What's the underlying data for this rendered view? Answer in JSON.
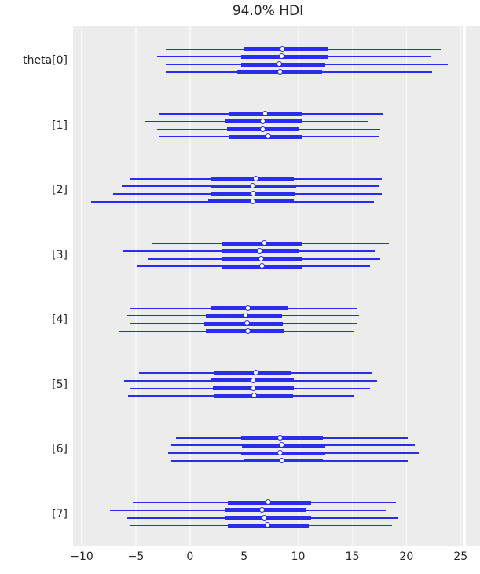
{
  "title": {
    "text": "94.0% HDI"
  },
  "colors": {
    "line": "#2a2eec",
    "plot_bg": "#ececec",
    "grid": "#f7f7f7",
    "text": "#262626",
    "figure_bg": "#ffffff"
  },
  "chart_data": {
    "type": "forest",
    "title": "94.0% HDI",
    "xlabel": "",
    "ylabel": "",
    "grid": "vertical-white-on-gray",
    "legend": "none",
    "xlim": [
      -10.8,
      25.2
    ],
    "x_ticks": [
      {
        "v": -10,
        "label": "−10"
      },
      {
        "v": -5,
        "label": "−5"
      },
      {
        "v": 0,
        "label": "0"
      },
      {
        "v": 5,
        "label": "5"
      },
      {
        "v": 10,
        "label": "10"
      },
      {
        "v": 15,
        "label": "15"
      },
      {
        "v": 20,
        "label": "20"
      },
      {
        "v": 25,
        "label": "25"
      }
    ],
    "interval_note": "thin line = 94% HDI, thick line = interquartile range, circle = median; 4 chains per parameter",
    "series": [
      {
        "name": "theta[0]",
        "chains": [
          {
            "hdi_94": [
              -2.2,
              23.2
            ],
            "quartile": [
              5.0,
              12.7
            ],
            "median": 8.6
          },
          {
            "hdi_94": [
              -3.0,
              22.2
            ],
            "quartile": [
              4.7,
              12.8
            ],
            "median": 8.5
          },
          {
            "hdi_94": [
              -2.2,
              23.8
            ],
            "quartile": [
              4.7,
              12.5
            ],
            "median": 8.3
          },
          {
            "hdi_94": [
              -2.2,
              22.4
            ],
            "quartile": [
              4.4,
              12.2
            ],
            "median": 8.4
          }
        ]
      },
      {
        "name": "[1]",
        "chains": [
          {
            "hdi_94": [
              -2.8,
              17.9
            ],
            "quartile": [
              3.6,
              10.4
            ],
            "median": 7.0
          },
          {
            "hdi_94": [
              -4.2,
              16.5
            ],
            "quartile": [
              3.3,
              10.4
            ],
            "median": 6.8
          },
          {
            "hdi_94": [
              -3.0,
              17.6
            ],
            "quartile": [
              3.4,
              10.0
            ],
            "median": 6.8
          },
          {
            "hdi_94": [
              -2.8,
              17.5
            ],
            "quartile": [
              3.6,
              10.4
            ],
            "median": 7.3
          }
        ]
      },
      {
        "name": "[2]",
        "chains": [
          {
            "hdi_94": [
              -5.6,
              17.7
            ],
            "quartile": [
              2.0,
              9.6
            ],
            "median": 6.1
          },
          {
            "hdi_94": [
              -6.3,
              17.5
            ],
            "quartile": [
              1.9,
              9.8
            ],
            "median": 5.8
          },
          {
            "hdi_94": [
              -7.1,
              17.7
            ],
            "quartile": [
              1.9,
              9.7
            ],
            "median": 5.9
          },
          {
            "hdi_94": [
              -9.1,
              17.0
            ],
            "quartile": [
              1.7,
              9.6
            ],
            "median": 5.8
          }
        ]
      },
      {
        "name": "[3]",
        "chains": [
          {
            "hdi_94": [
              -3.5,
              18.4
            ],
            "quartile": [
              3.0,
              10.4
            ],
            "median": 6.9
          },
          {
            "hdi_94": [
              -6.2,
              17.1
            ],
            "quartile": [
              3.0,
              10.0
            ],
            "median": 6.5
          },
          {
            "hdi_94": [
              -3.8,
              17.6
            ],
            "quartile": [
              3.0,
              10.3
            ],
            "median": 6.6
          },
          {
            "hdi_94": [
              -4.9,
              16.6
            ],
            "quartile": [
              3.0,
              10.3
            ],
            "median": 6.7
          }
        ]
      },
      {
        "name": "[4]",
        "chains": [
          {
            "hdi_94": [
              -5.6,
              15.5
            ],
            "quartile": [
              1.9,
              9.0
            ],
            "median": 5.4
          },
          {
            "hdi_94": [
              -5.8,
              15.6
            ],
            "quartile": [
              1.5,
              8.5
            ],
            "median": 5.2
          },
          {
            "hdi_94": [
              -5.5,
              15.4
            ],
            "quartile": [
              1.3,
              8.6
            ],
            "median": 5.3
          },
          {
            "hdi_94": [
              -6.5,
              15.1
            ],
            "quartile": [
              1.5,
              8.7
            ],
            "median": 5.4
          }
        ]
      },
      {
        "name": "[5]",
        "chains": [
          {
            "hdi_94": [
              -4.7,
              16.8
            ],
            "quartile": [
              2.3,
              9.4
            ],
            "median": 6.1
          },
          {
            "hdi_94": [
              -6.1,
              17.3
            ],
            "quartile": [
              2.0,
              9.6
            ],
            "median": 5.9
          },
          {
            "hdi_94": [
              -5.5,
              16.6
            ],
            "quartile": [
              2.1,
              9.6
            ],
            "median": 5.9
          },
          {
            "hdi_94": [
              -5.7,
              15.1
            ],
            "quartile": [
              2.3,
              9.5
            ],
            "median": 6.0
          }
        ]
      },
      {
        "name": "[6]",
        "chains": [
          {
            "hdi_94": [
              -1.3,
              20.1
            ],
            "quartile": [
              4.7,
              12.3
            ],
            "median": 8.4
          },
          {
            "hdi_94": [
              -1.7,
              20.8
            ],
            "quartile": [
              4.8,
              12.5
            ],
            "median": 8.5
          },
          {
            "hdi_94": [
              -2.0,
              21.1
            ],
            "quartile": [
              4.7,
              12.5
            ],
            "median": 8.4
          },
          {
            "hdi_94": [
              -1.7,
              20.1
            ],
            "quartile": [
              5.0,
              12.3
            ],
            "median": 8.5
          }
        ]
      },
      {
        "name": "[7]",
        "chains": [
          {
            "hdi_94": [
              -5.3,
              19.0
            ],
            "quartile": [
              3.5,
              11.2
            ],
            "median": 7.3
          },
          {
            "hdi_94": [
              -7.4,
              18.1
            ],
            "quartile": [
              3.2,
              10.7
            ],
            "median": 6.7
          },
          {
            "hdi_94": [
              -5.8,
              19.2
            ],
            "quartile": [
              3.2,
              11.2
            ],
            "median": 6.9
          },
          {
            "hdi_94": [
              -5.5,
              18.7
            ],
            "quartile": [
              3.5,
              11.0
            ],
            "median": 7.2
          }
        ]
      }
    ]
  }
}
